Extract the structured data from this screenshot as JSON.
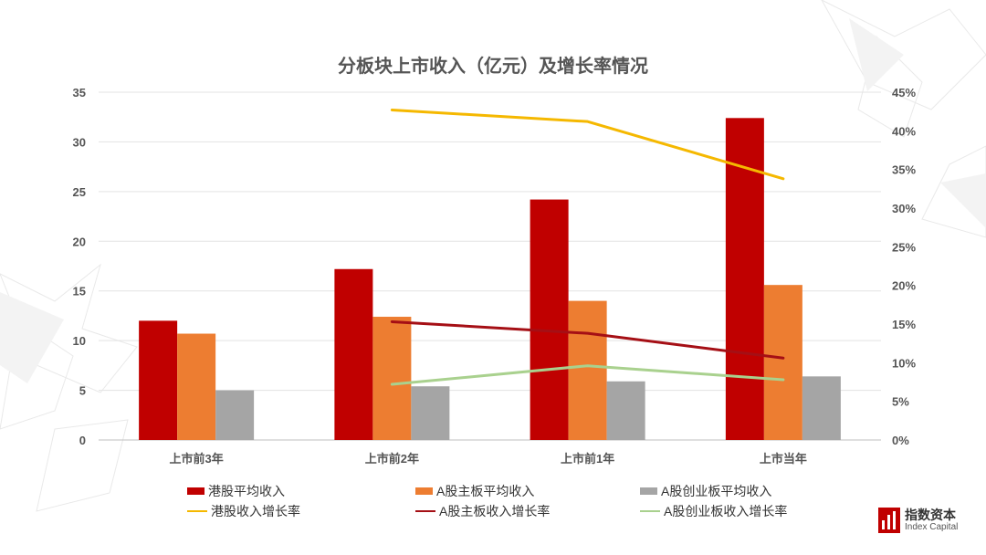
{
  "chart_data": {
    "type": "bar",
    "title": "分板块上市收入（亿元）及增长率情况",
    "categories": [
      "上市前3年",
      "上市前2年",
      "上市前1年",
      "上市当年"
    ],
    "left_axis": {
      "ylim": [
        0,
        35
      ],
      "ticks": [
        "0",
        "5",
        "10",
        "15",
        "20",
        "25",
        "30",
        "35"
      ]
    },
    "right_axis": {
      "ylim": [
        0,
        45
      ],
      "ticks": [
        "0%",
        "5%",
        "10%",
        "15%",
        "20%",
        "25%",
        "30%",
        "35%",
        "40%",
        "45%"
      ]
    },
    "bar_series": [
      {
        "name": "港股平均收入",
        "color": "#C00000",
        "values": [
          12.0,
          17.2,
          24.2,
          32.4
        ]
      },
      {
        "name": "A股主板平均收入",
        "color": "#ED7D31",
        "values": [
          10.7,
          12.4,
          14.0,
          15.6
        ]
      },
      {
        "name": "A股创业板平均收入",
        "color": "#A5A5A5",
        "values": [
          5.0,
          5.4,
          5.9,
          6.4
        ]
      }
    ],
    "line_series": [
      {
        "name": "港股收入增长率",
        "color": "#F5B800",
        "values": [
          null,
          42.7,
          41.2,
          33.8
        ]
      },
      {
        "name": "A股主板收入增长率",
        "color": "#A50F15",
        "values": [
          null,
          15.3,
          13.8,
          10.6
        ]
      },
      {
        "name": "A股创业板收入增长率",
        "color": "#A9D18E",
        "values": [
          null,
          7.2,
          9.6,
          7.8
        ]
      }
    ],
    "legend_position": "bottom",
    "grid": true
  },
  "logo": {
    "name_cn": "指数资本",
    "name_en": "Index Capital",
    "color": "#C00000"
  }
}
